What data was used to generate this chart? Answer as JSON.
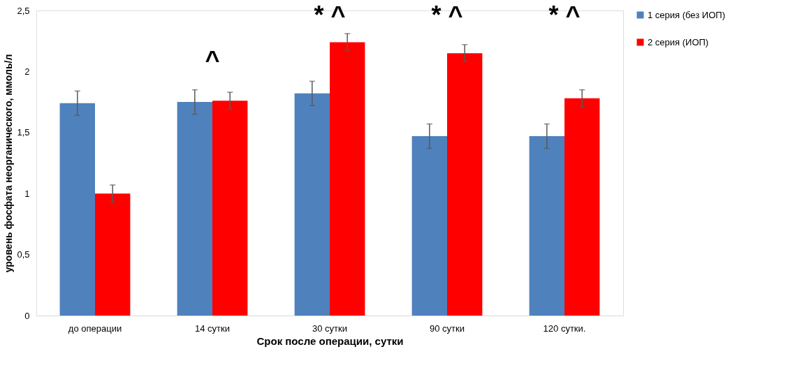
{
  "chart_data": {
    "type": "bar",
    "categories": [
      "до операции",
      "14 сутки",
      "30 сутки",
      "90 сутки",
      "120 сутки."
    ],
    "series": [
      {
        "name": "1 серия (без ИОП)",
        "color": "#4f81bd",
        "values": [
          1.74,
          1.75,
          1.82,
          1.47,
          1.47
        ],
        "errors": [
          0.1,
          0.1,
          0.1,
          0.1,
          0.1
        ]
      },
      {
        "name": "2 серия (ИОП)",
        "color": "#ff0000",
        "values": [
          1.0,
          1.76,
          2.24,
          2.15,
          1.78
        ],
        "errors": [
          0.07,
          0.07,
          0.07,
          0.07,
          0.07
        ]
      }
    ],
    "xlabel": "Срок после операции, сутки",
    "ylabel": "уровень фосфата неорганического, ммоль/л",
    "ylim": [
      0,
      2.5
    ],
    "yticks": [
      0,
      {
        "value": 0.5,
        "label": "0,5"
      },
      1,
      {
        "value": 1.5,
        "label": "1,5"
      },
      2,
      {
        "value": 2.5,
        "label": "2,5"
      }
    ],
    "grid": false,
    "legend": "right",
    "annotations": [
      "^",
      "* ^",
      "* ^",
      "* ^"
    ]
  }
}
